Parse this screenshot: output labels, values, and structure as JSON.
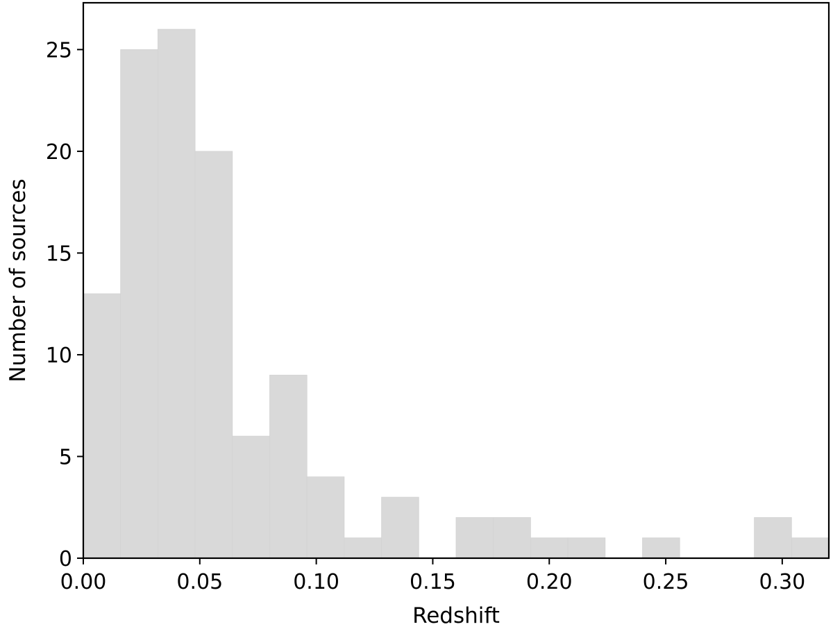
{
  "chart_data": {
    "type": "bar",
    "title": "",
    "xlabel": "Redshift",
    "ylabel": "Number of sources",
    "xlim": [
      0.0,
      0.32
    ],
    "ylim": [
      0,
      27.3
    ],
    "bin_width": 0.016,
    "bins": [
      {
        "x0": 0.0,
        "x1": 0.016,
        "count": 13
      },
      {
        "x0": 0.016,
        "x1": 0.032,
        "count": 25
      },
      {
        "x0": 0.032,
        "x1": 0.048,
        "count": 26
      },
      {
        "x0": 0.048,
        "x1": 0.064,
        "count": 20
      },
      {
        "x0": 0.064,
        "x1": 0.08,
        "count": 6
      },
      {
        "x0": 0.08,
        "x1": 0.096,
        "count": 9
      },
      {
        "x0": 0.096,
        "x1": 0.112,
        "count": 4
      },
      {
        "x0": 0.112,
        "x1": 0.128,
        "count": 1
      },
      {
        "x0": 0.128,
        "x1": 0.144,
        "count": 3
      },
      {
        "x0": 0.144,
        "x1": 0.16,
        "count": 0
      },
      {
        "x0": 0.16,
        "x1": 0.176,
        "count": 2
      },
      {
        "x0": 0.176,
        "x1": 0.192,
        "count": 2
      },
      {
        "x0": 0.192,
        "x1": 0.208,
        "count": 1
      },
      {
        "x0": 0.208,
        "x1": 0.224,
        "count": 1
      },
      {
        "x0": 0.224,
        "x1": 0.24,
        "count": 0
      },
      {
        "x0": 0.24,
        "x1": 0.256,
        "count": 1
      },
      {
        "x0": 0.256,
        "x1": 0.272,
        "count": 0
      },
      {
        "x0": 0.272,
        "x1": 0.288,
        "count": 0
      },
      {
        "x0": 0.288,
        "x1": 0.304,
        "count": 2
      },
      {
        "x0": 0.304,
        "x1": 0.32,
        "count": 1
      }
    ],
    "x_ticks": [
      {
        "value": 0.0,
        "label": "0.00"
      },
      {
        "value": 0.05,
        "label": "0.05"
      },
      {
        "value": 0.1,
        "label": "0.10"
      },
      {
        "value": 0.15,
        "label": "0.15"
      },
      {
        "value": 0.2,
        "label": "0.20"
      },
      {
        "value": 0.25,
        "label": "0.25"
      },
      {
        "value": 0.3,
        "label": "0.30"
      }
    ],
    "y_ticks": [
      {
        "value": 0,
        "label": "0"
      },
      {
        "value": 5,
        "label": "5"
      },
      {
        "value": 10,
        "label": "10"
      },
      {
        "value": 15,
        "label": "15"
      },
      {
        "value": 20,
        "label": "20"
      },
      {
        "value": 25,
        "label": "25"
      }
    ],
    "grid": false,
    "legend": "none",
    "colors": {
      "bar_fill": "#d9d9d9",
      "bar_edge": "#d3d3d3",
      "axis": "#000000"
    }
  }
}
